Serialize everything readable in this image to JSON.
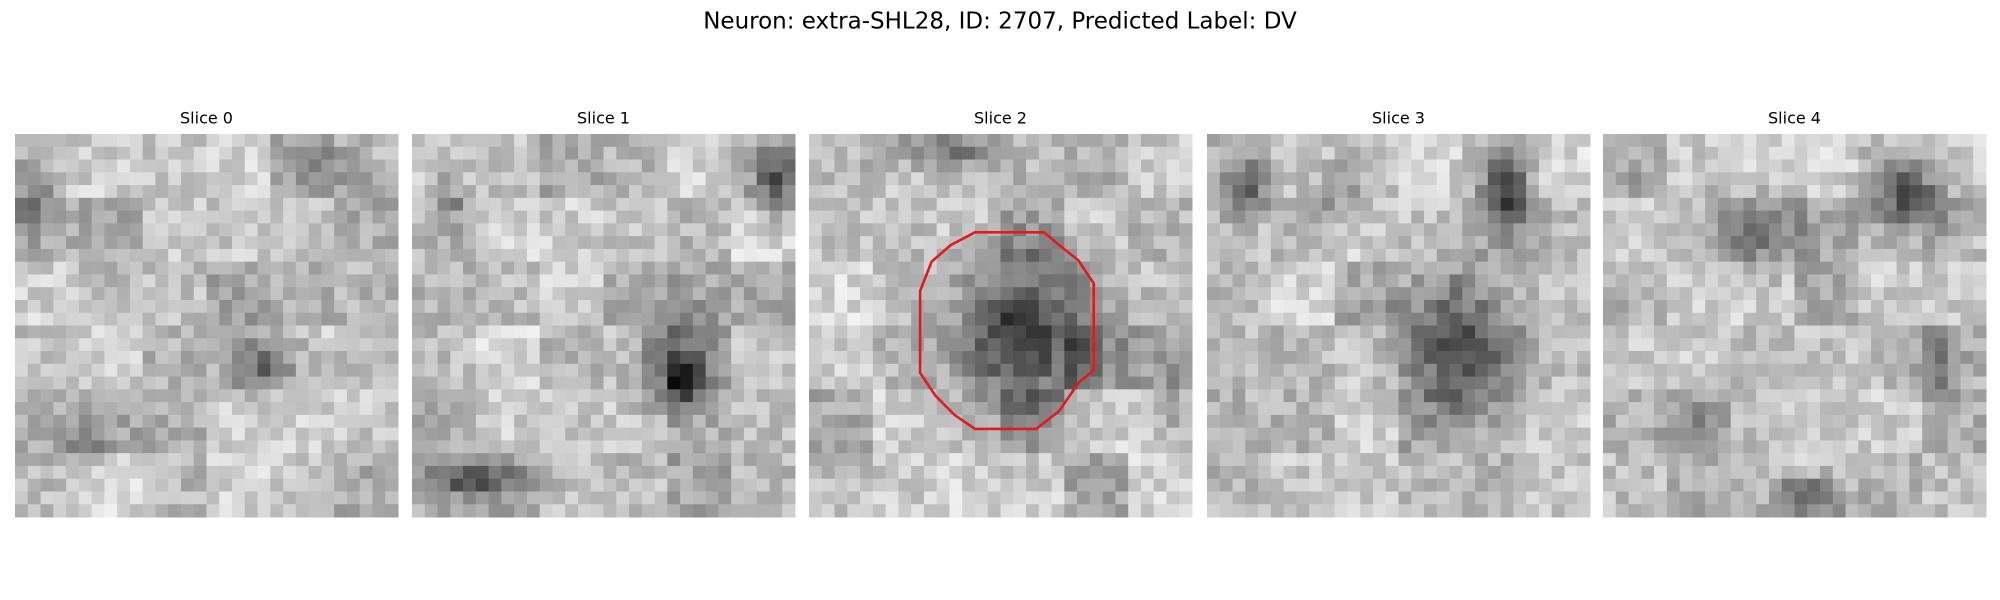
{
  "title": "Neuron: extra-SHL28, ID: 2707, Predicted Label: DV",
  "panels": [
    {
      "title": "Slice 0"
    },
    {
      "title": "Slice 1"
    },
    {
      "title": "Slice 2"
    },
    {
      "title": "Slice 3"
    },
    {
      "title": "Slice 4"
    }
  ]
}
